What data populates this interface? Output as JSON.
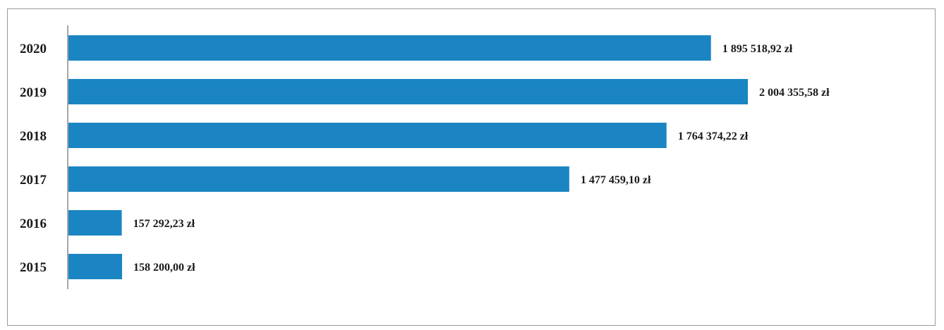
{
  "chart_data": {
    "type": "bar",
    "orientation": "horizontal",
    "categories": [
      "2020",
      "2019",
      "2018",
      "2017",
      "2016",
      "2015"
    ],
    "values": [
      1895518.92,
      2004355.58,
      1764374.22,
      1477459.1,
      157292.23,
      158200.0
    ],
    "value_labels": [
      "1 895 518,92 zł",
      "2 004 355,58 zł",
      "1 764 374,22 zł",
      "1 477 459,10 zł",
      "157 292,23 zł",
      "158 200,00 zł"
    ],
    "bar_color": "#1a85c2",
    "title": "",
    "xlabel": "",
    "ylabel": "",
    "xlim": [
      0,
      2100000
    ],
    "grid": false,
    "legend": "none"
  }
}
